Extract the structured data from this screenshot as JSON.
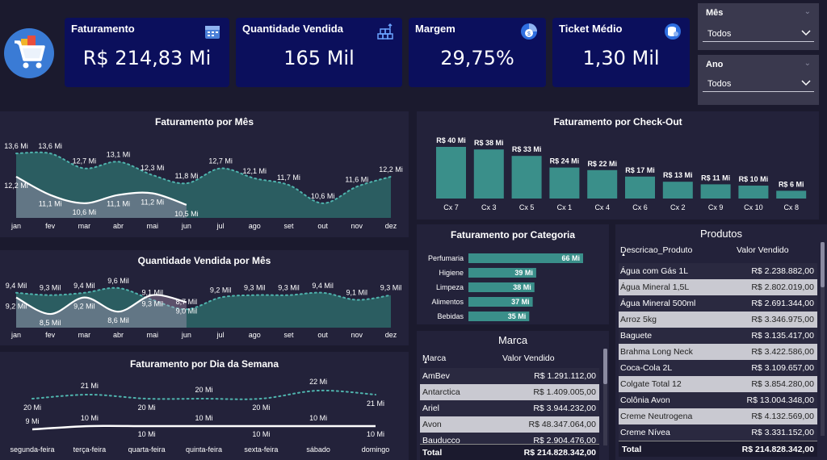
{
  "colors": {
    "background": "#1b1a2e",
    "panel": "#23223a",
    "kpi": "#0b0f5c",
    "teal": "#3a8f8a",
    "teal_dark": "#2c6466"
  },
  "kpis": [
    {
      "title": "Faturamento",
      "value": "R$ 214,83 Mi",
      "icon": "calendar-icon"
    },
    {
      "title": "Quantidade Vendida",
      "value": "165 Mil",
      "icon": "boxes-icon"
    },
    {
      "title": "Margem",
      "value": "29,75%",
      "icon": "pie-coin-icon"
    },
    {
      "title": "Ticket Médio",
      "value": "1,30 Mil",
      "icon": "coins-icon"
    }
  ],
  "slicers": {
    "mes": {
      "label": "Mês",
      "value": "Todos"
    },
    "ano": {
      "label": "Ano",
      "value": "Todos"
    }
  },
  "fat_mes": {
    "title": "Faturamento por Mês",
    "months": [
      "jan",
      "fev",
      "mar",
      "abr",
      "mai",
      "jun",
      "jul",
      "ago",
      "set",
      "out",
      "nov",
      "dez"
    ],
    "labels": [
      "13,6 Mi",
      "13,6 Mi",
      "12,7 Mi",
      "13,1 Mi",
      "12,3 Mi",
      "11,8 Mi",
      "12,7 Mi",
      "12,1 Mi",
      "11,7 Mi",
      "10,6 Mi",
      "11,6 Mi",
      "12,2 Mi"
    ],
    "values": [
      13.6,
      13.6,
      12.7,
      13.1,
      12.3,
      11.8,
      12.7,
      12.1,
      11.7,
      10.6,
      11.6,
      12.2
    ],
    "line_labels": [
      "12,2 Mi",
      "11,1 Mi",
      "10,6 Mi",
      "11,1 Mi",
      "11,2 Mi",
      "10,5 Mi"
    ],
    "line_values": [
      12.2,
      11.1,
      10.6,
      11.1,
      11.2,
      10.5
    ]
  },
  "qtd_mes": {
    "title": "Quantidade Vendida por Mês",
    "months": [
      "jan",
      "fev",
      "mar",
      "abr",
      "mai",
      "jun",
      "jul",
      "ago",
      "set",
      "out",
      "nov",
      "dez"
    ],
    "labels": [
      "9,4 Mil",
      "9,3 Mil",
      "9,4 Mil",
      "9,6 Mil",
      "9,1 Mil",
      "8,7 Mil",
      "9,2 Mil",
      "9,3 Mil",
      "9,3 Mil",
      "9,4 Mil",
      "9,1 Mil",
      "9,3 Mil"
    ],
    "values": [
      9.4,
      9.3,
      9.4,
      9.6,
      9.1,
      8.7,
      9.2,
      9.3,
      9.3,
      9.4,
      9.1,
      9.3
    ],
    "line_labels": [
      "9,2 Mil",
      "8,5 Mil",
      "9,2 Mil",
      "8,6 Mil",
      "9,3 Mil",
      "9,0 Mil"
    ],
    "line_values": [
      9.2,
      8.5,
      9.2,
      8.6,
      9.3,
      9.0
    ]
  },
  "fat_dia": {
    "title": "Faturamento por Dia da Semana",
    "days": [
      "segunda-feira",
      "terça-feira",
      "quarta-feira",
      "quinta-feira",
      "sexta-feira",
      "sábado",
      "domingo"
    ],
    "top_labels": [
      "20 Mi",
      "21 Mi",
      "20 Mi",
      "20 Mi",
      "20 Mi",
      "22 Mi",
      "21 Mi"
    ],
    "top_values": [
      20,
      21,
      20,
      20,
      20,
      22,
      21
    ],
    "bottom_labels": [
      "9 Mi",
      "10 Mi",
      "10 Mi",
      "10 Mi",
      "10 Mi",
      "10 Mi",
      "10 Mi"
    ],
    "bottom_values": [
      9,
      10,
      10,
      10,
      10,
      10,
      10
    ]
  },
  "checkout": {
    "title": "Faturamento por Check-Out",
    "categories": [
      "Cx 7",
      "Cx 3",
      "Cx 5",
      "Cx 1",
      "Cx 4",
      "Cx 6",
      "Cx 2",
      "Cx 9",
      "Cx 10",
      "Cx 8"
    ],
    "labels": [
      "R$ 40 Mi",
      "R$ 38 Mi",
      "R$ 33 Mi",
      "R$ 24 Mi",
      "R$ 22 Mi",
      "R$ 17 Mi",
      "R$ 13 Mi",
      "R$ 11 Mi",
      "R$ 10 Mi",
      "R$ 6 Mi"
    ],
    "values": [
      40,
      38,
      33,
      24,
      22,
      17,
      13,
      11,
      10,
      6
    ]
  },
  "categoria": {
    "title": "Faturamento por Categoria",
    "categories": [
      "Perfumaria",
      "Higiene",
      "Limpeza",
      "Alimentos",
      "Bebidas"
    ],
    "labels": [
      "66 Mi",
      "39 Mi",
      "38 Mi",
      "37 Mi",
      "35 Mi"
    ],
    "values": [
      66,
      39,
      38,
      37,
      35
    ]
  },
  "marca": {
    "title": "Marca",
    "col1": "Marca",
    "col2": "Valor Vendido",
    "rows": [
      [
        "AmBev",
        "R$ 1.291.112,00"
      ],
      [
        "Antarctica",
        "R$ 1.409.005,00"
      ],
      [
        "Ariel",
        "R$ 3.944.232,00"
      ],
      [
        "Avon",
        "R$ 48.347.064,00"
      ],
      [
        "Bauducco",
        "R$ 2.904.476,00"
      ]
    ],
    "total_label": "Total",
    "total_value": "R$ 214.828.342,00"
  },
  "produtos": {
    "title": "Produtos",
    "col1": "Descricao_Produto",
    "col2": "Valor Vendido",
    "rows": [
      [
        "Água com Gás 1L",
        "R$ 2.238.882,00"
      ],
      [
        "Água Mineral 1,5L",
        "R$ 2.802.019,00"
      ],
      [
        "Água Mineral 500ml",
        "R$ 2.691.344,00"
      ],
      [
        "Arroz 5kg",
        "R$ 3.346.975,00"
      ],
      [
        "Baguete",
        "R$ 3.135.417,00"
      ],
      [
        "Brahma Long Neck",
        "R$ 3.422.586,00"
      ],
      [
        "Coca-Cola 2L",
        "R$ 3.109.657,00"
      ],
      [
        "Colgate Total 12",
        "R$ 3.854.280,00"
      ],
      [
        "Colônia Avon",
        "R$ 13.004.348,00"
      ],
      [
        "Creme Neutrogena",
        "R$ 4.132.569,00"
      ],
      [
        "Creme Nívea",
        "R$ 3.331.152,00"
      ]
    ],
    "total_label": "Total",
    "total_value": "R$ 214.828.342,00"
  }
}
